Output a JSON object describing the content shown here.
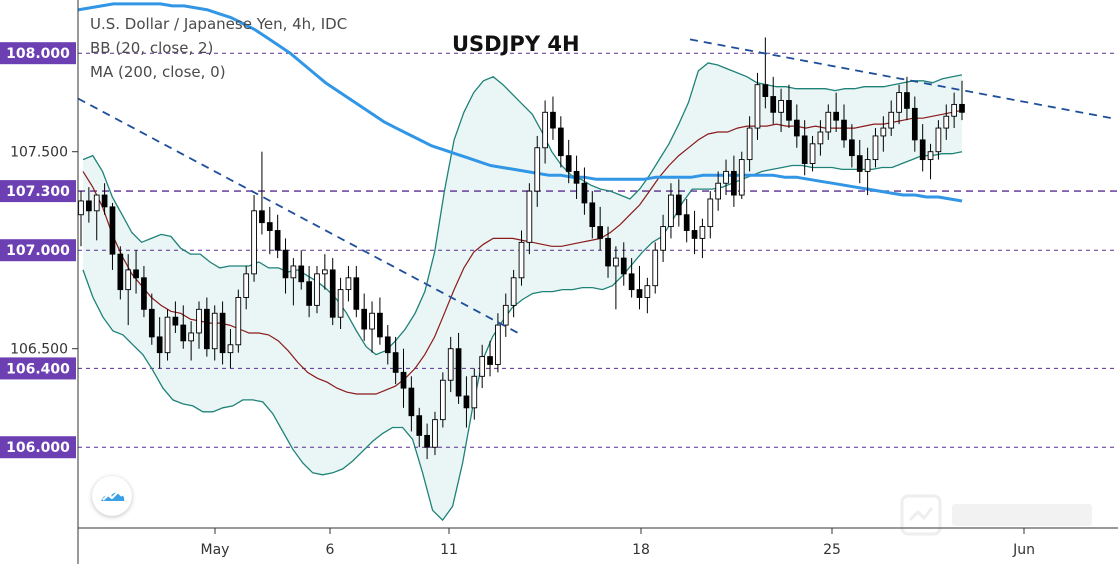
{
  "legend": {
    "symbol": "U.S. Dollar / Japanese Yen, 4h, IDC",
    "bb": "BB (20, close, 2)",
    "ma": "MA (200, close, 0)"
  },
  "colors": {
    "candle_up": "#ffffff",
    "candle_down": "#000000",
    "bb_fill": "#eaf6f6",
    "bb_band": "#1f8278",
    "bb_mid": "#8b1a1a",
    "ma200": "#3296e6",
    "trendline": "#1f4e9a",
    "level_line": "#5a2d91",
    "level_label_bg": "#6c3fb3"
  },
  "chart_data": {
    "type": "candlestick",
    "title": "USDJPY 4H",
    "instrument": "U.S. Dollar / Japanese Yen",
    "timeframe": "4h",
    "ylim": [
      105.59,
      108.27
    ],
    "price_ticks": [
      "107.500",
      "106.500"
    ],
    "date_ticks": [
      "May",
      "6",
      "11",
      "18",
      "25",
      "Jun"
    ],
    "dates_x": [
      "2020-04-29",
      "2020-05-01",
      "2020-05-06",
      "2020-05-11",
      "2020-05-18",
      "2020-05-25",
      "2020-06-01"
    ],
    "grid": false,
    "level_labels": [
      "108.000",
      "107.300",
      "107.000",
      "106.400",
      "106.000"
    ],
    "levels": [
      108.0,
      107.3,
      107.0,
      106.4,
      106.0
    ],
    "ohlc": [
      [
        107.18,
        107.3,
        107.02,
        107.25
      ],
      [
        107.25,
        107.32,
        107.14,
        107.2
      ],
      [
        107.2,
        107.28,
        107.05,
        107.28
      ],
      [
        107.28,
        107.34,
        107.18,
        107.22
      ],
      [
        107.22,
        107.24,
        106.9,
        106.98
      ],
      [
        106.98,
        107.02,
        106.75,
        106.8
      ],
      [
        106.8,
        106.98,
        106.62,
        106.9
      ],
      [
        106.9,
        107.0,
        106.78,
        106.86
      ],
      [
        106.86,
        106.92,
        106.66,
        106.7
      ],
      [
        106.7,
        106.78,
        106.52,
        106.56
      ],
      [
        106.56,
        106.66,
        106.4,
        106.48
      ],
      [
        106.48,
        106.7,
        106.44,
        106.66
      ],
      [
        106.66,
        106.74,
        106.58,
        106.62
      ],
      [
        106.62,
        106.72,
        106.5,
        106.54
      ],
      [
        106.54,
        106.64,
        106.44,
        106.58
      ],
      [
        106.58,
        106.74,
        106.5,
        106.7
      ],
      [
        106.7,
        106.76,
        106.46,
        106.5
      ],
      [
        106.5,
        106.72,
        106.44,
        106.68
      ],
      [
        106.68,
        106.74,
        106.42,
        106.48
      ],
      [
        106.48,
        106.6,
        106.4,
        106.52
      ],
      [
        106.52,
        106.8,
        106.48,
        106.76
      ],
      [
        106.76,
        106.92,
        106.7,
        106.88
      ],
      [
        106.88,
        107.28,
        106.84,
        107.2
      ],
      [
        107.2,
        107.5,
        107.08,
        107.14
      ],
      [
        107.14,
        107.22,
        106.98,
        107.1
      ],
      [
        107.1,
        107.18,
        106.96,
        107.0
      ],
      [
        107.0,
        107.06,
        106.78,
        106.86
      ],
      [
        106.86,
        106.96,
        106.72,
        106.92
      ],
      [
        106.92,
        107.0,
        106.8,
        106.84
      ],
      [
        106.84,
        106.92,
        106.66,
        106.72
      ],
      [
        106.72,
        106.92,
        106.68,
        106.88
      ],
      [
        106.88,
        106.98,
        106.8,
        106.9
      ],
      [
        106.9,
        106.96,
        106.62,
        106.66
      ],
      [
        106.66,
        106.86,
        106.6,
        106.8
      ],
      [
        106.8,
        106.92,
        106.74,
        106.86
      ],
      [
        106.86,
        106.92,
        106.66,
        106.7
      ],
      [
        106.7,
        106.78,
        106.54,
        106.6
      ],
      [
        106.6,
        106.74,
        106.48,
        106.68
      ],
      [
        106.68,
        106.76,
        106.52,
        106.56
      ],
      [
        106.56,
        106.62,
        106.42,
        106.48
      ],
      [
        106.48,
        106.56,
        106.32,
        106.38
      ],
      [
        106.38,
        106.5,
        106.2,
        106.3
      ],
      [
        106.3,
        106.36,
        106.08,
        106.16
      ],
      [
        106.16,
        106.2,
        106.0,
        106.06
      ],
      [
        106.06,
        106.12,
        105.94,
        106.0
      ],
      [
        106.0,
        106.18,
        105.96,
        106.14
      ],
      [
        106.14,
        106.38,
        106.1,
        106.34
      ],
      [
        106.34,
        106.56,
        106.28,
        106.5
      ],
      [
        106.5,
        106.58,
        106.22,
        106.26
      ],
      [
        106.26,
        106.36,
        106.1,
        106.2
      ],
      [
        106.2,
        106.4,
        106.14,
        106.36
      ],
      [
        106.36,
        106.52,
        106.3,
        106.46
      ],
      [
        106.46,
        106.54,
        106.36,
        106.42
      ],
      [
        106.42,
        106.68,
        106.38,
        106.62
      ],
      [
        106.62,
        106.78,
        106.56,
        106.72
      ],
      [
        106.72,
        106.9,
        106.66,
        106.86
      ],
      [
        106.86,
        107.1,
        106.82,
        107.04
      ],
      [
        107.04,
        107.34,
        106.98,
        107.3
      ],
      [
        107.3,
        107.58,
        107.22,
        107.52
      ],
      [
        107.52,
        107.76,
        107.44,
        107.7
      ],
      [
        107.7,
        107.78,
        107.56,
        107.62
      ],
      [
        107.62,
        107.68,
        107.42,
        107.48
      ],
      [
        107.48,
        107.56,
        107.34,
        107.4
      ],
      [
        107.4,
        107.48,
        107.26,
        107.34
      ],
      [
        107.34,
        107.42,
        107.18,
        107.24
      ],
      [
        107.24,
        107.3,
        107.06,
        107.12
      ],
      [
        107.12,
        107.22,
        107.0,
        107.06
      ],
      [
        107.06,
        107.12,
        106.86,
        106.92
      ],
      [
        106.92,
        107.02,
        106.7,
        106.96
      ],
      [
        106.96,
        107.04,
        106.82,
        106.88
      ],
      [
        106.88,
        106.96,
        106.76,
        106.8
      ],
      [
        106.8,
        106.92,
        106.7,
        106.76
      ],
      [
        106.76,
        106.86,
        106.68,
        106.82
      ],
      [
        106.82,
        107.04,
        106.78,
        107.0
      ],
      [
        107.0,
        107.18,
        106.94,
        107.12
      ],
      [
        107.12,
        107.34,
        107.06,
        107.28
      ],
      [
        107.28,
        107.36,
        107.12,
        107.18
      ],
      [
        107.18,
        107.26,
        107.04,
        107.1
      ],
      [
        107.1,
        107.2,
        106.98,
        107.06
      ],
      [
        107.06,
        107.16,
        106.96,
        107.12
      ],
      [
        107.12,
        107.3,
        107.06,
        107.26
      ],
      [
        107.26,
        107.4,
        107.2,
        107.34
      ],
      [
        107.34,
        107.46,
        107.28,
        107.4
      ],
      [
        107.4,
        107.48,
        107.22,
        107.28
      ],
      [
        107.28,
        107.5,
        107.26,
        107.46
      ],
      [
        107.46,
        107.68,
        107.4,
        107.62
      ],
      [
        107.62,
        107.9,
        107.56,
        107.84
      ],
      [
        107.84,
        108.08,
        107.72,
        107.78
      ],
      [
        107.78,
        107.88,
        107.64,
        107.7
      ],
      [
        107.7,
        107.82,
        107.6,
        107.76
      ],
      [
        107.76,
        107.84,
        107.62,
        107.66
      ],
      [
        107.66,
        107.74,
        107.52,
        107.58
      ],
      [
        107.58,
        107.66,
        107.38,
        107.44
      ],
      [
        107.44,
        107.58,
        107.4,
        107.54
      ],
      [
        107.54,
        107.66,
        107.48,
        107.6
      ],
      [
        107.6,
        107.74,
        107.56,
        107.7
      ],
      [
        107.7,
        107.8,
        107.6,
        107.66
      ],
      [
        107.66,
        107.74,
        107.52,
        107.56
      ],
      [
        107.56,
        107.64,
        107.42,
        107.48
      ],
      [
        107.48,
        107.56,
        107.34,
        107.4
      ],
      [
        107.4,
        107.52,
        107.28,
        107.46
      ],
      [
        107.46,
        107.62,
        107.42,
        107.58
      ],
      [
        107.58,
        107.68,
        107.5,
        107.62
      ],
      [
        107.62,
        107.76,
        107.58,
        107.7
      ],
      [
        107.7,
        107.84,
        107.64,
        107.8
      ],
      [
        107.8,
        107.88,
        107.66,
        107.72
      ],
      [
        107.72,
        107.78,
        107.5,
        107.56
      ],
      [
        107.56,
        107.64,
        107.4,
        107.46
      ],
      [
        107.46,
        107.54,
        107.36,
        107.5
      ],
      [
        107.5,
        107.66,
        107.46,
        107.62
      ],
      [
        107.62,
        107.74,
        107.56,
        107.68
      ],
      [
        107.68,
        107.8,
        107.62,
        107.74
      ],
      [
        107.74,
        107.86,
        107.66,
        107.7
      ]
    ],
    "bb_upper": [
      107.46,
      107.48,
      107.4,
      107.27,
      107.18,
      107.09,
      107.04,
      107.06,
      107.08,
      107.07,
      107.01,
      106.98,
      106.98,
      106.94,
      106.91,
      106.92,
      106.92,
      106.92,
      106.94,
      106.91,
      106.91,
      106.89,
      106.9,
      106.87,
      106.84,
      106.8,
      106.75,
      106.68,
      106.59,
      106.51,
      106.47,
      106.49,
      106.54,
      106.6,
      106.68,
      106.79,
      106.99,
      107.3,
      107.56,
      107.7,
      107.8,
      107.86,
      107.88,
      107.84,
      107.79,
      107.74,
      107.69,
      107.6,
      107.5,
      107.43,
      107.38,
      107.36,
      107.33,
      107.31,
      107.3,
      107.28,
      107.26,
      107.31,
      107.38,
      107.46,
      107.54,
      107.64,
      107.75,
      107.91,
      107.95,
      107.94,
      107.92,
      107.9,
      107.88,
      107.85,
      107.84,
      107.83,
      107.83,
      107.82,
      107.82,
      107.82,
      107.82,
      107.81,
      107.82,
      107.82,
      107.83,
      107.83,
      107.83,
      107.84,
      107.85,
      107.86,
      107.86,
      107.85,
      107.87,
      107.88,
      107.89
    ],
    "bb_lower": [
      106.9,
      106.76,
      106.66,
      106.59,
      106.57,
      106.52,
      106.47,
      106.39,
      106.3,
      106.24,
      106.22,
      106.21,
      106.18,
      106.18,
      106.2,
      106.21,
      106.24,
      106.24,
      106.23,
      106.17,
      106.08,
      105.99,
      105.92,
      105.87,
      105.86,
      105.87,
      105.89,
      105.93,
      105.98,
      106.03,
      106.07,
      106.1,
      106.1,
      106.04,
      105.87,
      105.68,
      105.63,
      105.7,
      105.92,
      106.2,
      106.44,
      106.56,
      106.64,
      106.71,
      106.75,
      106.78,
      106.79,
      106.79,
      106.8,
      106.8,
      106.81,
      106.81,
      106.8,
      106.82,
      106.87,
      106.93,
      106.99,
      107.04,
      107.07,
      107.15,
      107.24,
      107.31,
      107.31,
      107.31,
      107.32,
      107.34,
      107.36,
      107.38,
      107.4,
      107.41,
      107.42,
      107.43,
      107.43,
      107.42,
      107.42,
      107.42,
      107.41,
      107.41,
      107.41,
      107.41,
      107.42,
      107.42,
      107.44,
      107.46,
      107.48,
      107.48,
      107.49,
      107.49,
      107.5
    ],
    "bb_mid": [
      107.4,
      107.32,
      107.22,
      107.08,
      106.97,
      106.88,
      106.82,
      106.76,
      106.72,
      106.69,
      106.68,
      106.65,
      106.64,
      106.63,
      106.63,
      106.62,
      106.6,
      106.58,
      106.58,
      106.57,
      106.54,
      106.49,
      106.43,
      106.38,
      106.35,
      106.33,
      106.3,
      106.28,
      106.27,
      106.27,
      106.27,
      106.29,
      106.31,
      106.35,
      106.4,
      106.47,
      106.56,
      106.68,
      106.8,
      106.91,
      106.99,
      107.03,
      107.06,
      107.06,
      107.06,
      107.05,
      107.04,
      107.03,
      107.02,
      107.02,
      107.03,
      107.04,
      107.05,
      107.06,
      107.09,
      107.13,
      107.18,
      107.23,
      107.3,
      107.37,
      107.43,
      107.48,
      107.52,
      107.56,
      107.59,
      107.6,
      107.6,
      107.62,
      107.63,
      107.63,
      107.63,
      107.64,
      107.63,
      107.63,
      107.62,
      107.63,
      107.62,
      107.62,
      107.62,
      107.62,
      107.63,
      107.64,
      107.64,
      107.65,
      107.66,
      107.67,
      107.67,
      107.68,
      107.69,
      107.7,
      107.71
    ],
    "ma200": [
      108.22,
      108.23,
      108.24,
      108.25,
      108.25,
      108.25,
      108.25,
      108.25,
      108.24,
      108.24,
      108.23,
      108.22,
      108.2,
      108.18,
      108.15,
      108.12,
      108.08,
      108.04,
      108.0,
      107.95,
      107.9,
      107.85,
      107.81,
      107.77,
      107.73,
      107.69,
      107.65,
      107.62,
      107.59,
      107.56,
      107.53,
      107.51,
      107.49,
      107.47,
      107.45,
      107.43,
      107.42,
      107.41,
      107.4,
      107.39,
      107.38,
      107.38,
      107.37,
      107.37,
      107.36,
      107.36,
      107.36,
      107.36,
      107.36,
      107.37,
      107.37,
      107.37,
      107.37,
      107.38,
      107.38,
      107.38,
      107.38,
      107.38,
      107.38,
      107.38,
      107.37,
      107.37,
      107.36,
      107.35,
      107.34,
      107.33,
      107.32,
      107.31,
      107.3,
      107.29,
      107.28,
      107.28,
      107.27,
      107.27,
      107.26,
      107.25
    ],
    "trendline_1": [
      [
        106.75,
        107.85
      ],
      [
        106.55,
        107.23
      ]
    ],
    "trendline_2": [
      [
        107.97,
        108.08
      ],
      [
        107.93,
        107.66
      ]
    ]
  }
}
